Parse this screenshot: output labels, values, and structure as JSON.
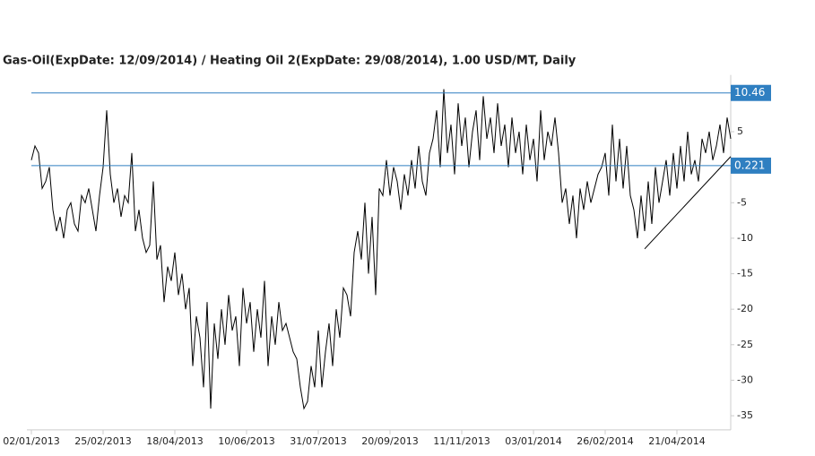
{
  "chart_data": {
    "type": "line",
    "title": "Gas-Oil(ExpDate: 12/09/2014) / Heating Oil 2(ExpDate: 29/08/2014), 1.00 USD/MT, Daily",
    "categories": [
      "02/01/2013",
      null,
      null,
      null,
      null,
      null,
      null,
      null,
      null,
      null,
      null,
      null,
      null,
      null,
      null,
      null,
      null,
      null,
      null,
      null,
      "25/02/2013",
      null,
      null,
      null,
      null,
      null,
      null,
      null,
      null,
      null,
      null,
      null,
      null,
      null,
      null,
      null,
      null,
      null,
      null,
      null,
      "18/04/2013",
      null,
      null,
      null,
      null,
      null,
      null,
      null,
      null,
      null,
      null,
      null,
      null,
      null,
      null,
      null,
      null,
      null,
      null,
      null,
      "10/06/2013",
      null,
      null,
      null,
      null,
      null,
      null,
      null,
      null,
      null,
      null,
      null,
      null,
      null,
      null,
      null,
      null,
      null,
      null,
      null,
      "31/07/2013",
      null,
      null,
      null,
      null,
      null,
      null,
      null,
      null,
      null,
      null,
      null,
      null,
      null,
      null,
      null,
      null,
      null,
      null,
      null,
      "20/09/2013",
      null,
      null,
      null,
      null,
      null,
      null,
      null,
      null,
      null,
      null,
      null,
      null,
      null,
      null,
      null,
      null,
      null,
      null,
      null,
      "11/11/2013",
      null,
      null,
      null,
      null,
      null,
      null,
      null,
      null,
      null,
      null,
      null,
      null,
      null,
      null,
      null,
      null,
      null,
      null,
      null,
      "03/01/2014",
      null,
      null,
      null,
      null,
      null,
      null,
      null,
      null,
      null,
      null,
      null,
      null,
      null,
      null,
      null,
      null,
      null,
      null,
      null,
      "26/02/2014",
      null,
      null,
      null,
      null,
      null,
      null,
      null,
      null,
      null,
      null,
      null,
      null,
      null,
      null,
      null,
      null,
      null,
      null,
      null,
      "21/04/2014",
      null,
      null,
      null,
      null,
      null,
      null,
      null,
      null,
      null,
      null,
      null,
      null,
      null,
      null,
      null
    ],
    "values": [
      1,
      3,
      2,
      -3,
      -2,
      0,
      -6,
      -9,
      -7,
      -10,
      -6,
      -5,
      -8,
      -9,
      -4,
      -5,
      -3,
      -6,
      -9,
      -4,
      0,
      8,
      -1,
      -5,
      -3,
      -7,
      -4,
      -5,
      2,
      -9,
      -6,
      -10,
      -12,
      -11,
      -2,
      -13,
      -11,
      -19,
      -14,
      -16,
      -12,
      -18,
      -15,
      -20,
      -17,
      -28,
      -21,
      -24,
      -31,
      -19,
      -34,
      -22,
      -27,
      -20,
      -25,
      -18,
      -23,
      -21,
      -28,
      -17,
      -22,
      -19,
      -26,
      -20,
      -24,
      -16,
      -28,
      -21,
      -25,
      -19,
      -23,
      -22,
      -24,
      -26,
      -27,
      -31,
      -34,
      -33,
      -28,
      -31,
      -23,
      -31,
      -26,
      -22,
      -28,
      -20,
      -24,
      -17,
      -18,
      -21,
      -12,
      -9,
      -13,
      -5,
      -15,
      -7,
      -18,
      -3,
      -4,
      1,
      -4,
      0,
      -2,
      -6,
      -1,
      -4,
      1,
      -3,
      3,
      -2,
      -4,
      2,
      4,
      8,
      0,
      11,
      2,
      6,
      -1,
      9,
      3,
      7,
      0,
      5,
      8,
      1,
      10,
      4,
      7,
      2,
      9,
      3,
      6,
      0,
      7,
      2,
      5,
      -1,
      6,
      1,
      4,
      -2,
      8,
      1,
      5,
      3,
      7,
      2,
      -5,
      -3,
      -8,
      -4,
      -10,
      -3,
      -6,
      -2,
      -5,
      -3,
      -1,
      0,
      2,
      -4,
      6,
      -2,
      4,
      -3,
      3,
      -4,
      -6,
      -10,
      -4,
      -9,
      -2,
      -8,
      0,
      -5,
      -2,
      1,
      -4,
      2,
      -3,
      3,
      -2,
      5,
      -1,
      1,
      -2,
      4,
      2,
      5,
      1,
      3,
      6,
      2,
      7,
      4
    ],
    "color": "#000000",
    "ylim": [
      -37,
      13
    ],
    "yticks": [
      -35,
      -30,
      -25,
      -20,
      -15,
      -10,
      -5,
      5
    ],
    "hlines": [
      10.46,
      0.221
    ],
    "hline_color": "#2f7fc1",
    "trendline": {
      "x": [
        171,
        195
      ],
      "y": [
        -11.5,
        1.5
      ]
    }
  }
}
